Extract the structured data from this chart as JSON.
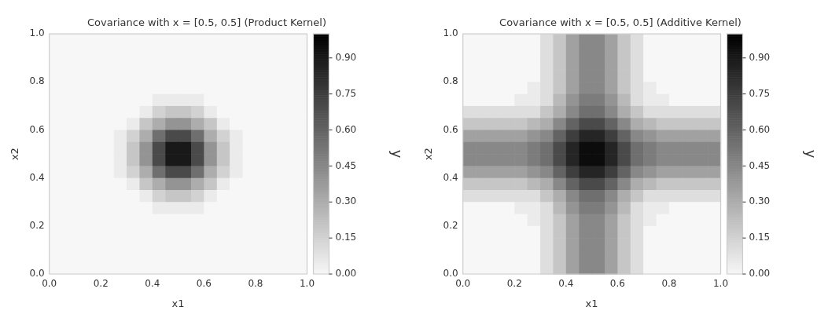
{
  "chart_data": [
    {
      "type": "heatmap",
      "title": "Covariance with x = [0.5, 0.5] (Product Kernel)",
      "xlabel": "x1",
      "ylabel": "x2",
      "clabel": "y",
      "x": [
        0.025,
        0.075,
        0.125,
        0.175,
        0.225,
        0.275,
        0.325,
        0.375,
        0.425,
        0.475,
        0.525,
        0.575,
        0.625,
        0.675,
        0.725,
        0.775,
        0.825,
        0.875,
        0.925,
        0.975
      ],
      "y": [
        0.975,
        0.925,
        0.875,
        0.825,
        0.775,
        0.725,
        0.675,
        0.625,
        0.575,
        0.525,
        0.475,
        0.425,
        0.375,
        0.325,
        0.275,
        0.225,
        0.175,
        0.125,
        0.075,
        0.025
      ],
      "xlim": [
        0,
        1
      ],
      "ylim": [
        0,
        1
      ],
      "xticks": [
        {
          "value": 0,
          "label": "0.0"
        },
        {
          "value": 0.2,
          "label": "0.2"
        },
        {
          "value": 0.4,
          "label": "0.4"
        },
        {
          "value": 0.6,
          "label": "0.6"
        },
        {
          "value": 0.8,
          "label": "0.8"
        },
        {
          "value": 1,
          "label": "1.0"
        }
      ],
      "yticks": [
        {
          "value": 0,
          "label": "0.0"
        },
        {
          "value": 0.2,
          "label": "0.2"
        },
        {
          "value": 0.4,
          "label": "0.4"
        },
        {
          "value": 0.6,
          "label": "0.6"
        },
        {
          "value": 0.8,
          "label": "0.8"
        },
        {
          "value": 1,
          "label": "1.0"
        }
      ],
      "clim": [
        0,
        1
      ],
      "cticks": [
        {
          "value": 0,
          "label": "0.00"
        },
        {
          "value": 0.15,
          "label": "0.15"
        },
        {
          "value": 0.3,
          "label": "0.30"
        },
        {
          "value": 0.45,
          "label": "0.45"
        },
        {
          "value": 0.6,
          "label": "0.60"
        },
        {
          "value": 0.75,
          "label": "0.75"
        },
        {
          "value": 0.9,
          "label": "0.90"
        }
      ],
      "cells": [
        [
          0,
          0,
          0,
          0,
          0,
          0,
          0,
          0,
          0,
          0,
          0,
          0,
          0,
          0,
          0,
          0,
          0,
          0,
          0,
          0
        ],
        [
          0,
          0,
          0,
          0,
          0,
          0,
          0,
          0,
          0,
          0,
          0,
          0,
          0,
          0,
          0,
          0,
          0,
          0,
          0,
          0
        ],
        [
          0,
          0,
          0,
          0,
          0,
          0,
          0,
          0,
          0,
          0,
          0,
          0,
          0,
          0,
          0,
          0,
          0,
          0,
          0,
          0
        ],
        [
          0,
          0,
          0,
          0,
          0,
          0,
          0,
          0,
          0,
          0,
          0,
          0,
          0,
          0,
          0,
          0,
          0,
          0,
          0,
          0
        ],
        [
          0,
          0,
          0,
          0,
          0,
          0,
          0,
          0,
          0,
          0,
          0,
          0,
          0,
          0,
          0,
          0,
          0,
          0,
          0,
          0
        ],
        [
          0,
          0,
          0,
          0,
          0,
          0,
          0,
          0,
          0.05,
          0.05,
          0.05,
          0.05,
          0,
          0,
          0,
          0,
          0,
          0,
          0,
          0
        ],
        [
          0,
          0,
          0,
          0,
          0,
          0,
          0,
          0.05,
          0.15,
          0.2,
          0.2,
          0.15,
          0.05,
          0,
          0,
          0,
          0,
          0,
          0,
          0
        ],
        [
          0,
          0,
          0,
          0,
          0,
          0,
          0.05,
          0.2,
          0.3,
          0.4,
          0.4,
          0.3,
          0.2,
          0.05,
          0,
          0,
          0,
          0,
          0,
          0
        ],
        [
          0,
          0,
          0,
          0,
          0,
          0.05,
          0.15,
          0.3,
          0.55,
          0.7,
          0.7,
          0.55,
          0.3,
          0.15,
          0.05,
          0,
          0,
          0,
          0,
          0
        ],
        [
          0,
          0,
          0,
          0,
          0,
          0.05,
          0.2,
          0.4,
          0.7,
          0.9,
          0.9,
          0.7,
          0.4,
          0.2,
          0.05,
          0,
          0,
          0,
          0,
          0
        ],
        [
          0,
          0,
          0,
          0,
          0,
          0.05,
          0.2,
          0.4,
          0.7,
          0.9,
          0.9,
          0.7,
          0.4,
          0.2,
          0.05,
          0,
          0,
          0,
          0,
          0
        ],
        [
          0,
          0,
          0,
          0,
          0,
          0.05,
          0.15,
          0.3,
          0.55,
          0.7,
          0.7,
          0.55,
          0.3,
          0.15,
          0.05,
          0,
          0,
          0,
          0,
          0
        ],
        [
          0,
          0,
          0,
          0,
          0,
          0,
          0.05,
          0.2,
          0.3,
          0.4,
          0.4,
          0.3,
          0.2,
          0.05,
          0,
          0,
          0,
          0,
          0,
          0
        ],
        [
          0,
          0,
          0,
          0,
          0,
          0,
          0,
          0.05,
          0.15,
          0.2,
          0.2,
          0.15,
          0.05,
          0,
          0,
          0,
          0,
          0,
          0,
          0
        ],
        [
          0,
          0,
          0,
          0,
          0,
          0,
          0,
          0,
          0.05,
          0.05,
          0.05,
          0.05,
          0,
          0,
          0,
          0,
          0,
          0,
          0,
          0
        ],
        [
          0,
          0,
          0,
          0,
          0,
          0,
          0,
          0,
          0,
          0,
          0,
          0,
          0,
          0,
          0,
          0,
          0,
          0,
          0,
          0
        ],
        [
          0,
          0,
          0,
          0,
          0,
          0,
          0,
          0,
          0,
          0,
          0,
          0,
          0,
          0,
          0,
          0,
          0,
          0,
          0,
          0
        ],
        [
          0,
          0,
          0,
          0,
          0,
          0,
          0,
          0,
          0,
          0,
          0,
          0,
          0,
          0,
          0,
          0,
          0,
          0,
          0,
          0
        ],
        [
          0,
          0,
          0,
          0,
          0,
          0,
          0,
          0,
          0,
          0,
          0,
          0,
          0,
          0,
          0,
          0,
          0,
          0,
          0,
          0
        ],
        [
          0,
          0,
          0,
          0,
          0,
          0,
          0,
          0,
          0,
          0,
          0,
          0,
          0,
          0,
          0,
          0,
          0,
          0,
          0,
          0
        ]
      ]
    },
    {
      "type": "heatmap",
      "title": "Covariance with x = [0.5, 0.5] (Additive Kernel)",
      "xlabel": "x1",
      "ylabel": "x2",
      "clabel": "y",
      "x": [
        0.025,
        0.075,
        0.125,
        0.175,
        0.225,
        0.275,
        0.325,
        0.375,
        0.425,
        0.475,
        0.525,
        0.575,
        0.625,
        0.675,
        0.725,
        0.775,
        0.825,
        0.875,
        0.925,
        0.975
      ],
      "y": [
        0.975,
        0.925,
        0.875,
        0.825,
        0.775,
        0.725,
        0.675,
        0.625,
        0.575,
        0.525,
        0.475,
        0.425,
        0.375,
        0.325,
        0.275,
        0.225,
        0.175,
        0.125,
        0.075,
        0.025
      ],
      "xlim": [
        0,
        1
      ],
      "ylim": [
        0,
        1
      ],
      "xticks": [
        {
          "value": 0,
          "label": "0.0"
        },
        {
          "value": 0.2,
          "label": "0.2"
        },
        {
          "value": 0.4,
          "label": "0.4"
        },
        {
          "value": 0.6,
          "label": "0.6"
        },
        {
          "value": 0.8,
          "label": "0.8"
        },
        {
          "value": 1,
          "label": "1.0"
        }
      ],
      "yticks": [
        {
          "value": 0,
          "label": "0.0"
        },
        {
          "value": 0.2,
          "label": "0.2"
        },
        {
          "value": 0.4,
          "label": "0.4"
        },
        {
          "value": 0.6,
          "label": "0.6"
        },
        {
          "value": 0.8,
          "label": "0.8"
        },
        {
          "value": 1,
          "label": "1.0"
        }
      ],
      "clim": [
        0,
        1
      ],
      "cticks": [
        {
          "value": 0,
          "label": "0.00"
        },
        {
          "value": 0.15,
          "label": "0.15"
        },
        {
          "value": 0.3,
          "label": "0.30"
        },
        {
          "value": 0.45,
          "label": "0.45"
        },
        {
          "value": 0.6,
          "label": "0.60"
        },
        {
          "value": 0.75,
          "label": "0.75"
        },
        {
          "value": 0.9,
          "label": "0.90"
        }
      ],
      "cells": [
        [
          0,
          0,
          0,
          0,
          0,
          0,
          0.1,
          0.2,
          0.35,
          0.45,
          0.45,
          0.35,
          0.2,
          0.1,
          0,
          0,
          0,
          0,
          0,
          0
        ],
        [
          0,
          0,
          0,
          0,
          0,
          0,
          0.1,
          0.2,
          0.35,
          0.45,
          0.45,
          0.35,
          0.2,
          0.1,
          0,
          0,
          0,
          0,
          0,
          0
        ],
        [
          0,
          0,
          0,
          0,
          0,
          0,
          0.1,
          0.2,
          0.35,
          0.45,
          0.45,
          0.35,
          0.2,
          0.1,
          0,
          0,
          0,
          0,
          0,
          0
        ],
        [
          0,
          0,
          0,
          0,
          0,
          0,
          0.1,
          0.2,
          0.35,
          0.45,
          0.45,
          0.35,
          0.2,
          0.1,
          0,
          0,
          0,
          0,
          0,
          0
        ],
        [
          0,
          0,
          0,
          0,
          0,
          0.05,
          0.1,
          0.2,
          0.35,
          0.45,
          0.45,
          0.35,
          0.2,
          0.1,
          0.05,
          0,
          0,
          0,
          0,
          0
        ],
        [
          0,
          0,
          0,
          0,
          0.05,
          0.05,
          0.1,
          0.25,
          0.4,
          0.5,
          0.5,
          0.4,
          0.25,
          0.1,
          0.05,
          0.05,
          0,
          0,
          0,
          0
        ],
        [
          0.1,
          0.1,
          0.1,
          0.1,
          0.1,
          0.1,
          0.2,
          0.3,
          0.45,
          0.55,
          0.55,
          0.45,
          0.3,
          0.2,
          0.1,
          0.1,
          0.1,
          0.1,
          0.1,
          0.1
        ],
        [
          0.2,
          0.2,
          0.2,
          0.2,
          0.2,
          0.25,
          0.3,
          0.45,
          0.6,
          0.7,
          0.7,
          0.6,
          0.45,
          0.3,
          0.25,
          0.2,
          0.2,
          0.2,
          0.2,
          0.2
        ],
        [
          0.35,
          0.35,
          0.35,
          0.35,
          0.35,
          0.4,
          0.45,
          0.6,
          0.75,
          0.85,
          0.85,
          0.75,
          0.6,
          0.45,
          0.4,
          0.35,
          0.35,
          0.35,
          0.35,
          0.35
        ],
        [
          0.45,
          0.45,
          0.45,
          0.45,
          0.45,
          0.5,
          0.55,
          0.7,
          0.85,
          0.95,
          0.95,
          0.85,
          0.7,
          0.55,
          0.5,
          0.45,
          0.45,
          0.45,
          0.45,
          0.45
        ],
        [
          0.45,
          0.45,
          0.45,
          0.45,
          0.45,
          0.5,
          0.55,
          0.7,
          0.85,
          0.95,
          0.95,
          0.85,
          0.7,
          0.55,
          0.5,
          0.45,
          0.45,
          0.45,
          0.45,
          0.45
        ],
        [
          0.35,
          0.35,
          0.35,
          0.35,
          0.35,
          0.4,
          0.45,
          0.6,
          0.75,
          0.85,
          0.85,
          0.75,
          0.6,
          0.45,
          0.4,
          0.35,
          0.35,
          0.35,
          0.35,
          0.35
        ],
        [
          0.2,
          0.2,
          0.2,
          0.2,
          0.2,
          0.25,
          0.3,
          0.45,
          0.6,
          0.7,
          0.7,
          0.6,
          0.45,
          0.3,
          0.25,
          0.2,
          0.2,
          0.2,
          0.2,
          0.2
        ],
        [
          0.1,
          0.1,
          0.1,
          0.1,
          0.1,
          0.1,
          0.2,
          0.3,
          0.45,
          0.55,
          0.55,
          0.45,
          0.3,
          0.2,
          0.1,
          0.1,
          0.1,
          0.1,
          0.1,
          0.1
        ],
        [
          0,
          0,
          0,
          0,
          0.05,
          0.05,
          0.1,
          0.25,
          0.4,
          0.5,
          0.5,
          0.4,
          0.25,
          0.1,
          0.05,
          0.05,
          0,
          0,
          0,
          0
        ],
        [
          0,
          0,
          0,
          0,
          0,
          0.05,
          0.1,
          0.2,
          0.35,
          0.45,
          0.45,
          0.35,
          0.2,
          0.1,
          0.05,
          0,
          0,
          0,
          0,
          0
        ],
        [
          0,
          0,
          0,
          0,
          0,
          0,
          0.1,
          0.2,
          0.35,
          0.45,
          0.45,
          0.35,
          0.2,
          0.1,
          0,
          0,
          0,
          0,
          0,
          0
        ],
        [
          0,
          0,
          0,
          0,
          0,
          0,
          0.1,
          0.2,
          0.35,
          0.45,
          0.45,
          0.35,
          0.2,
          0.1,
          0,
          0,
          0,
          0,
          0,
          0
        ],
        [
          0,
          0,
          0,
          0,
          0,
          0,
          0.1,
          0.2,
          0.35,
          0.45,
          0.45,
          0.35,
          0.2,
          0.1,
          0,
          0,
          0,
          0,
          0,
          0
        ],
        [
          0,
          0,
          0,
          0,
          0,
          0,
          0.1,
          0.2,
          0.35,
          0.45,
          0.45,
          0.35,
          0.2,
          0.1,
          0,
          0,
          0,
          0,
          0,
          0
        ]
      ]
    }
  ]
}
